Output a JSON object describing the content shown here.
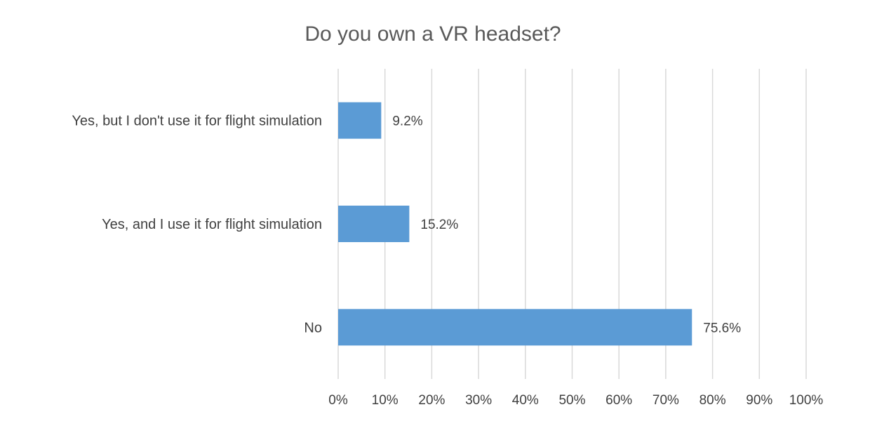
{
  "chart_data": {
    "type": "bar",
    "orientation": "horizontal",
    "title": "Do you own a VR headset?",
    "categories": [
      "Yes, but I don't use it for flight simulation",
      "Yes, and I use it for flight simulation",
      "No"
    ],
    "values": [
      9.2,
      15.2,
      75.6
    ],
    "data_labels": [
      "9.2%",
      "15.2%",
      "75.6%"
    ],
    "xlim": [
      0,
      100
    ],
    "x_ticks": [
      "0%",
      "10%",
      "20%",
      "30%",
      "40%",
      "50%",
      "60%",
      "70%",
      "80%",
      "90%",
      "100%"
    ],
    "xlabel": "",
    "ylabel": "",
    "grid": "vertical",
    "legend": "none",
    "colors": {
      "bar": "#5b9bd5",
      "grid": "#d9d9d9",
      "text": "#404040",
      "title": "#595959"
    }
  }
}
